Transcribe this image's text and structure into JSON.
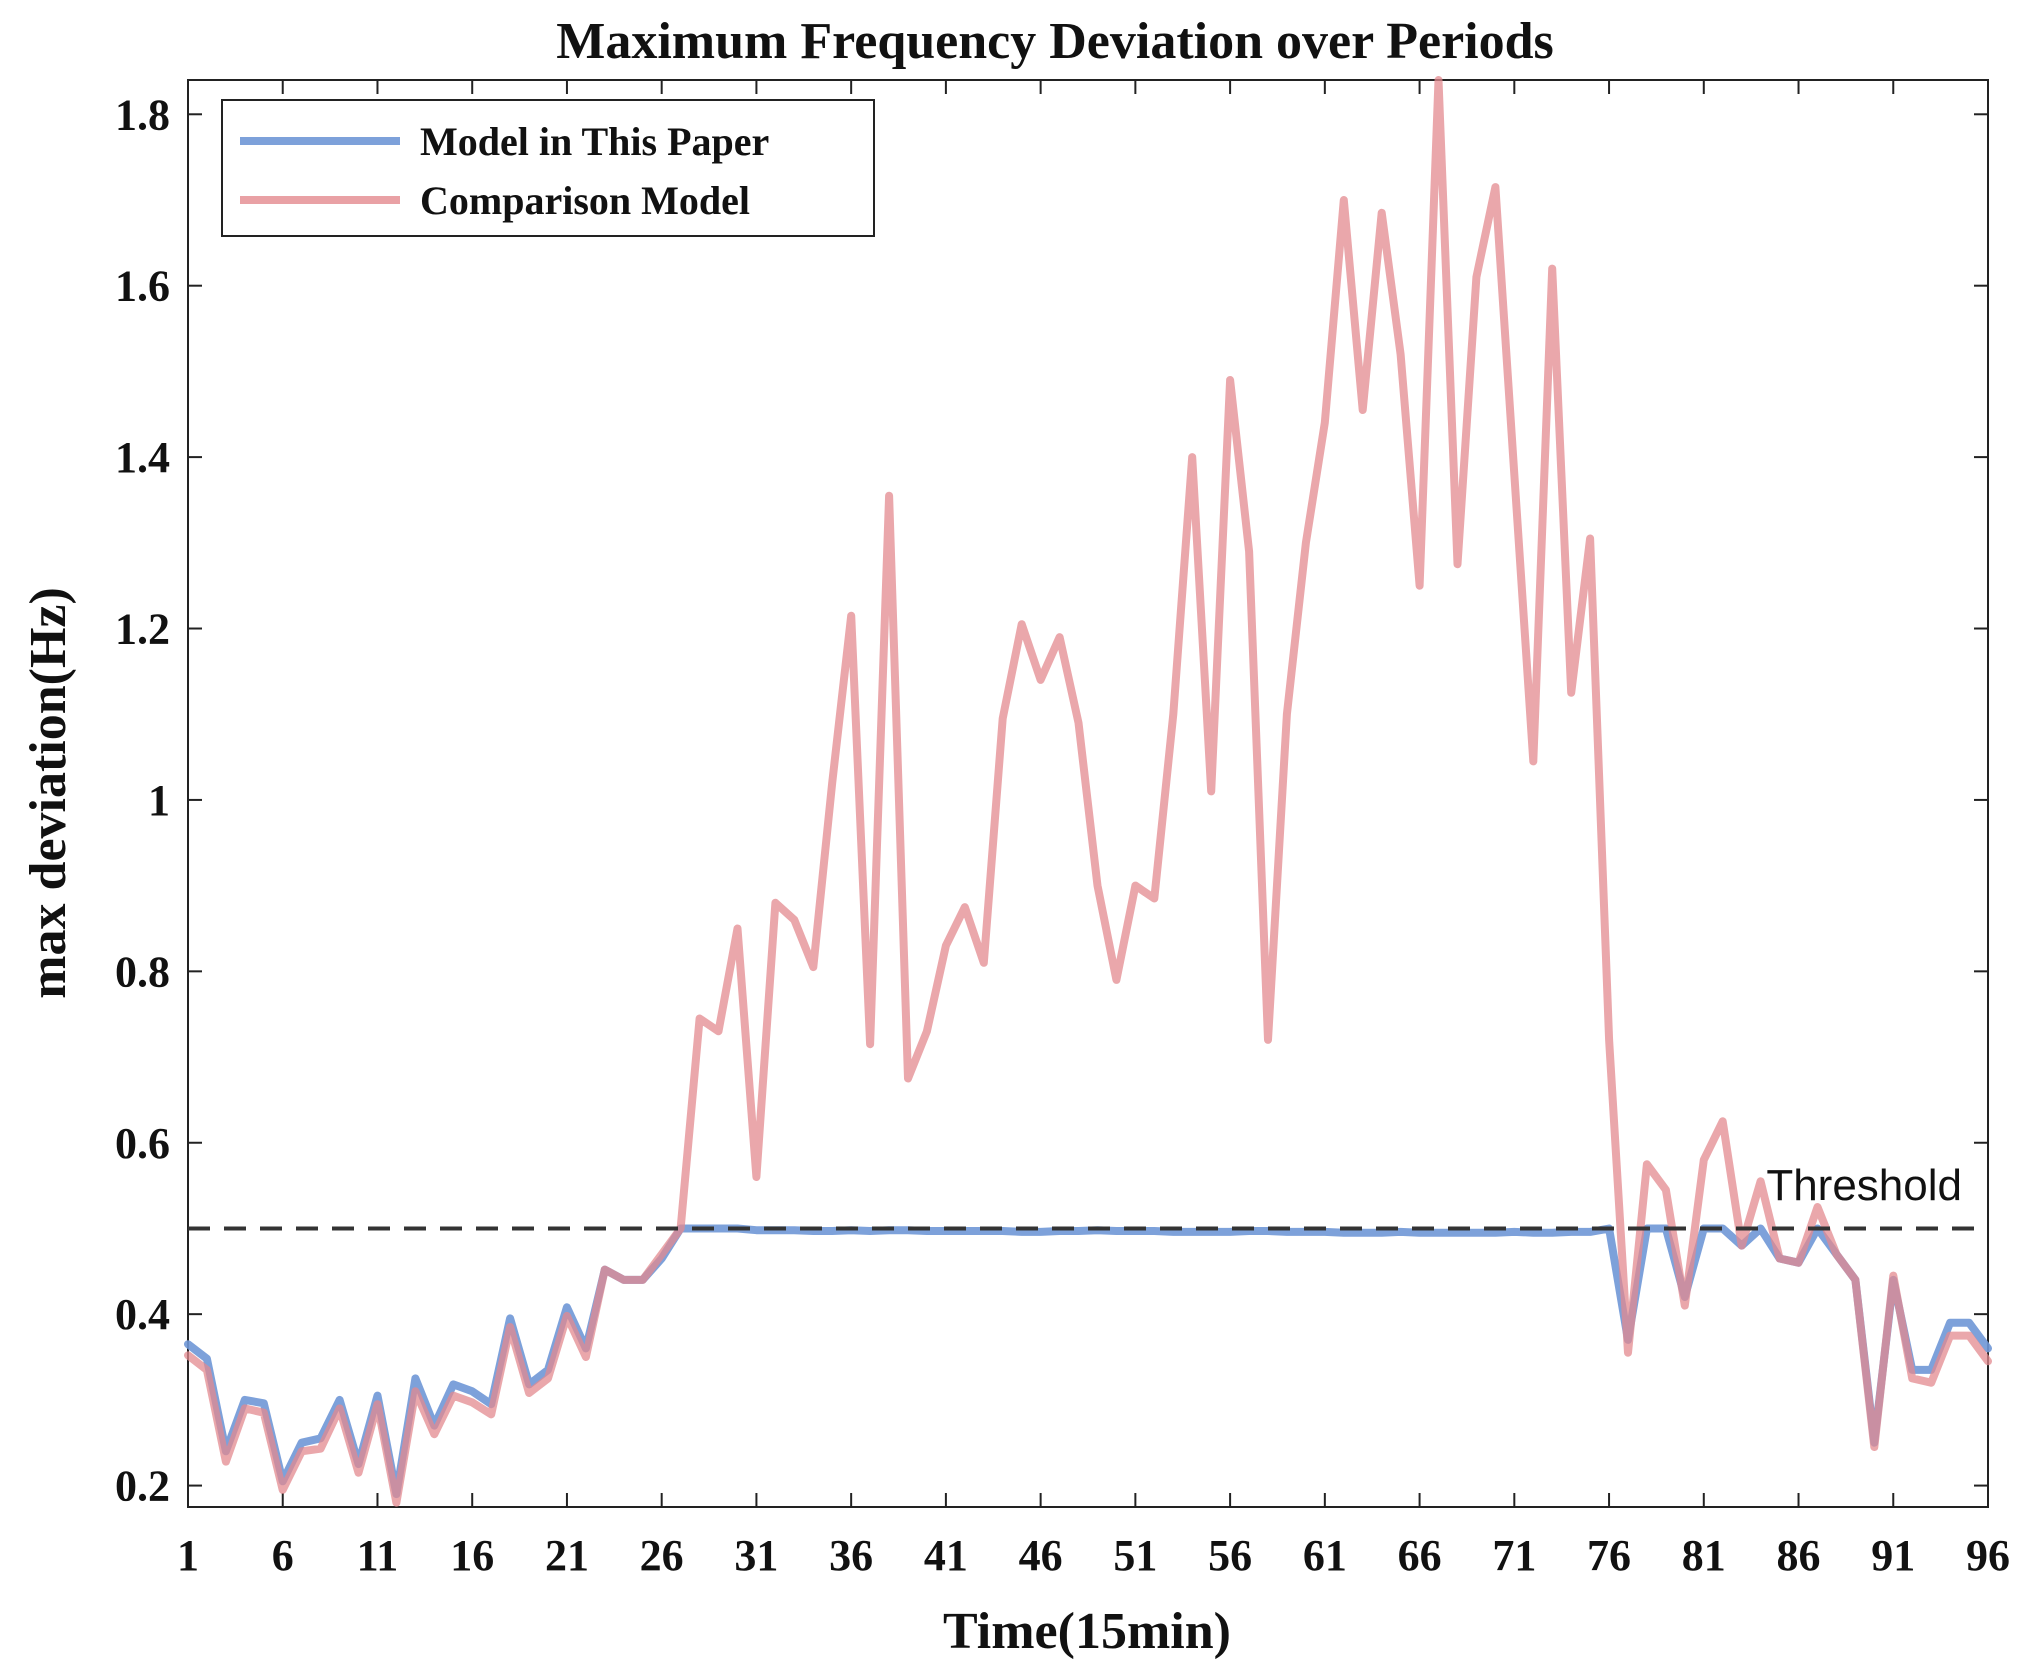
{
  "chart_data": {
    "type": "line",
    "title": "Maximum Frequency Deviation over Periods",
    "xlabel": "Time(15min)",
    "ylabel": "max deviation(Hz)",
    "xlim": [
      1,
      96
    ],
    "ylim": [
      0.175,
      1.84
    ],
    "x_ticks": [
      1,
      6,
      11,
      16,
      21,
      26,
      31,
      36,
      41,
      46,
      51,
      56,
      61,
      66,
      71,
      76,
      81,
      86,
      91,
      96
    ],
    "y_ticks": [
      0.2,
      0.4,
      0.6,
      0.8,
      1,
      1.2,
      1.4,
      1.6,
      1.8
    ],
    "y_tick_labels": [
      "0.2",
      "0.4",
      "0.6",
      "0.8",
      "1",
      "1.2",
      "1.4",
      "1.6",
      "1.8"
    ],
    "legend_position": "top-left",
    "series": [
      {
        "name": "Model in This Paper",
        "color": "#6f97d6",
        "values": [
          0.365,
          0.348,
          0.24,
          0.3,
          0.296,
          0.205,
          0.25,
          0.255,
          0.3,
          0.225,
          0.305,
          0.19,
          0.325,
          0.27,
          0.318,
          0.31,
          0.295,
          0.395,
          0.318,
          0.335,
          0.408,
          0.36,
          0.452,
          0.44,
          0.44,
          0.465,
          0.5,
          0.5,
          0.5,
          0.5,
          0.498,
          0.498,
          0.498,
          0.497,
          0.497,
          0.498,
          0.497,
          0.498,
          0.498,
          0.497,
          0.497,
          0.497,
          0.497,
          0.497,
          0.496,
          0.496,
          0.497,
          0.497,
          0.498,
          0.497,
          0.497,
          0.497,
          0.496,
          0.496,
          0.496,
          0.496,
          0.497,
          0.497,
          0.496,
          0.496,
          0.496,
          0.495,
          0.495,
          0.495,
          0.496,
          0.495,
          0.495,
          0.495,
          0.495,
          0.495,
          0.496,
          0.495,
          0.495,
          0.496,
          0.496,
          0.5,
          0.37,
          0.5,
          0.5,
          0.42,
          0.5,
          0.5,
          0.48,
          0.5,
          0.465,
          0.46,
          0.5,
          0.47,
          0.44,
          0.25,
          0.44,
          0.335,
          0.335,
          0.39,
          0.39,
          0.36
        ]
      },
      {
        "name": "Comparison Model",
        "color": "#e38a8f",
        "values": [
          0.352,
          0.335,
          0.228,
          0.29,
          0.285,
          0.195,
          0.24,
          0.243,
          0.29,
          0.215,
          0.295,
          0.18,
          0.31,
          0.26,
          0.305,
          0.297,
          0.283,
          0.385,
          0.308,
          0.325,
          0.398,
          0.35,
          0.452,
          0.44,
          0.44,
          0.47,
          0.5,
          0.745,
          0.73,
          0.85,
          0.56,
          0.88,
          0.86,
          0.805,
          1.02,
          1.215,
          0.715,
          1.355,
          0.675,
          0.73,
          0.83,
          0.875,
          0.81,
          1.095,
          1.205,
          1.14,
          1.19,
          1.09,
          0.9,
          0.79,
          0.9,
          0.885,
          1.1,
          1.4,
          1.01,
          1.49,
          1.29,
          0.72,
          1.1,
          1.3,
          1.44,
          1.7,
          1.455,
          1.685,
          1.52,
          1.25,
          1.84,
          1.275,
          1.61,
          1.715,
          1.38,
          1.045,
          1.62,
          1.125,
          1.305,
          0.72,
          0.355,
          0.575,
          0.545,
          0.41,
          0.58,
          0.625,
          0.48,
          0.555,
          0.465,
          0.46,
          0.525,
          0.47,
          0.44,
          0.245,
          0.445,
          0.325,
          0.32,
          0.375,
          0.375,
          0.345
        ]
      }
    ],
    "threshold": {
      "value": 0.5,
      "label": "Threshold",
      "style": "dashed",
      "color": "#333333"
    }
  }
}
